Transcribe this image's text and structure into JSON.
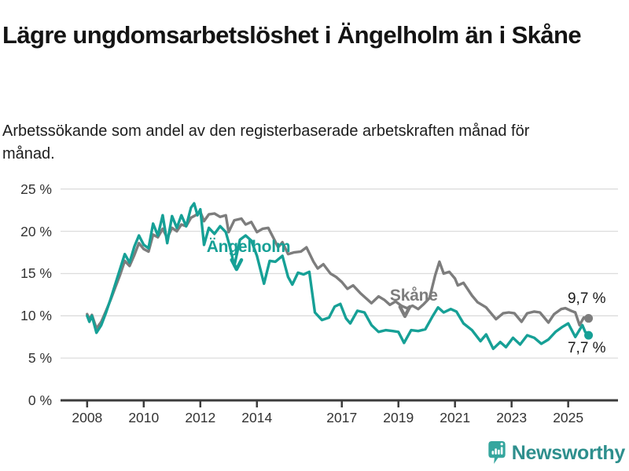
{
  "title": "Lägre ungdomsarbetslöshet i Ängelholm än i Skåne",
  "subtitle": "Arbetssökande som andel av den registerbaserade arbetskraften månad för månad.",
  "footer": {
    "brand": "Newsworthy"
  },
  "colors": {
    "angelholm": "#16a096",
    "skane": "#7d7d7d",
    "grid": "#dcdcdc",
    "axis": "#3c3c3c",
    "text": "#1a1a1a",
    "logo_teal": "#35a69e",
    "logo_text": "#2e8f8d"
  },
  "chart_data": {
    "type": "line",
    "unit": "%",
    "grid": true,
    "legend_position": "inline-annotations",
    "xlim": [
      2007.06,
      2026.76
    ],
    "ylim": [
      0,
      25
    ],
    "x_ticks": [
      {
        "v": 2008,
        "label": "2008"
      },
      {
        "v": 2010,
        "label": "2010"
      },
      {
        "v": 2012,
        "label": "2012"
      },
      {
        "v": 2014,
        "label": "2014"
      },
      {
        "v": 2017,
        "label": "2017"
      },
      {
        "v": 2019,
        "label": "2019"
      },
      {
        "v": 2021,
        "label": "2021"
      },
      {
        "v": 2023,
        "label": "2023"
      },
      {
        "v": 2025,
        "label": "2025"
      }
    ],
    "y_ticks": [
      {
        "v": 25,
        "label": "25 %"
      },
      {
        "v": 20,
        "label": "20 %"
      },
      {
        "v": 15,
        "label": "15 %"
      },
      {
        "v": 10,
        "label": "10 %"
      },
      {
        "v": 5,
        "label": "5 %"
      },
      {
        "v": 0,
        "label": "0 %"
      }
    ],
    "series": [
      {
        "name": "Skåne",
        "color": "#7d7d7d",
        "end_label": "9,7 %",
        "end_value": 9.7,
        "points": [
          [
            2008.0,
            10.2
          ],
          [
            2008.08,
            9.6
          ],
          [
            2008.17,
            10.1
          ],
          [
            2008.33,
            8.5
          ],
          [
            2008.5,
            9.3
          ],
          [
            2008.67,
            10.6
          ],
          [
            2008.83,
            11.9
          ],
          [
            2009.0,
            13.4
          ],
          [
            2009.17,
            14.9
          ],
          [
            2009.33,
            16.5
          ],
          [
            2009.5,
            15.9
          ],
          [
            2009.67,
            17.2
          ],
          [
            2009.83,
            18.6
          ],
          [
            2010.0,
            17.9
          ],
          [
            2010.17,
            17.6
          ],
          [
            2010.33,
            19.6
          ],
          [
            2010.5,
            19.3
          ],
          [
            2010.67,
            20.3
          ],
          [
            2010.83,
            19.2
          ],
          [
            2011.0,
            20.4
          ],
          [
            2011.17,
            20.0
          ],
          [
            2011.33,
            20.8
          ],
          [
            2011.5,
            20.6
          ],
          [
            2011.67,
            21.6
          ],
          [
            2011.83,
            21.9
          ],
          [
            2012.0,
            22.3
          ],
          [
            2012.13,
            21.2
          ],
          [
            2012.3,
            22.0
          ],
          [
            2012.5,
            22.1
          ],
          [
            2012.7,
            21.7
          ],
          [
            2012.9,
            21.9
          ],
          [
            2013.0,
            19.9
          ],
          [
            2013.2,
            21.3
          ],
          [
            2013.45,
            21.5
          ],
          [
            2013.6,
            20.8
          ],
          [
            2013.8,
            21.1
          ],
          [
            2014.0,
            19.9
          ],
          [
            2014.2,
            20.3
          ],
          [
            2014.4,
            20.4
          ],
          [
            2014.6,
            19.1
          ],
          [
            2014.75,
            18.1
          ],
          [
            2014.9,
            18.7
          ],
          [
            2015.1,
            17.3
          ],
          [
            2015.3,
            17.5
          ],
          [
            2015.55,
            17.6
          ],
          [
            2015.75,
            18.1
          ],
          [
            2016.0,
            16.4
          ],
          [
            2016.15,
            15.6
          ],
          [
            2016.35,
            16.1
          ],
          [
            2016.6,
            15.0
          ],
          [
            2016.8,
            14.6
          ],
          [
            2017.0,
            14.0
          ],
          [
            2017.2,
            13.2
          ],
          [
            2017.4,
            13.6
          ],
          [
            2017.65,
            12.7
          ],
          [
            2017.85,
            12.1
          ],
          [
            2018.05,
            11.5
          ],
          [
            2018.3,
            12.3
          ],
          [
            2018.5,
            11.9
          ],
          [
            2018.7,
            11.3
          ],
          [
            2018.9,
            11.7
          ],
          [
            2019.1,
            11.2
          ],
          [
            2019.3,
            10.9
          ],
          [
            2019.5,
            11.2
          ],
          [
            2019.7,
            10.8
          ],
          [
            2019.9,
            11.4
          ],
          [
            2020.1,
            12.1
          ],
          [
            2020.3,
            14.8
          ],
          [
            2020.45,
            16.4
          ],
          [
            2020.6,
            15.0
          ],
          [
            2020.8,
            15.2
          ],
          [
            2021.0,
            14.4
          ],
          [
            2021.1,
            13.6
          ],
          [
            2021.3,
            13.9
          ],
          [
            2021.6,
            12.4
          ],
          [
            2021.8,
            11.6
          ],
          [
            2022.1,
            11.0
          ],
          [
            2022.3,
            10.2
          ],
          [
            2022.45,
            9.6
          ],
          [
            2022.7,
            10.3
          ],
          [
            2022.9,
            10.4
          ],
          [
            2023.1,
            10.3
          ],
          [
            2023.35,
            9.3
          ],
          [
            2023.55,
            10.3
          ],
          [
            2023.8,
            10.5
          ],
          [
            2024.0,
            10.4
          ],
          [
            2024.3,
            9.2
          ],
          [
            2024.5,
            10.2
          ],
          [
            2024.75,
            10.8
          ],
          [
            2024.9,
            10.9
          ],
          [
            2025.1,
            10.6
          ],
          [
            2025.25,
            10.4
          ],
          [
            2025.4,
            8.9
          ],
          [
            2025.55,
            9.8
          ],
          [
            2025.72,
            9.7
          ]
        ]
      },
      {
        "name": "Ängelholm",
        "color": "#16a096",
        "end_label": "7,7 %",
        "end_value": 7.7,
        "points": [
          [
            2008.0,
            10.0
          ],
          [
            2008.08,
            9.3
          ],
          [
            2008.17,
            10.0
          ],
          [
            2008.33,
            8.0
          ],
          [
            2008.5,
            8.9
          ],
          [
            2008.67,
            10.4
          ],
          [
            2008.83,
            12.0
          ],
          [
            2009.0,
            13.8
          ],
          [
            2009.17,
            15.6
          ],
          [
            2009.33,
            17.3
          ],
          [
            2009.5,
            16.3
          ],
          [
            2009.67,
            18.2
          ],
          [
            2009.83,
            19.5
          ],
          [
            2010.0,
            18.4
          ],
          [
            2010.17,
            18.0
          ],
          [
            2010.33,
            20.9
          ],
          [
            2010.5,
            19.5
          ],
          [
            2010.67,
            21.9
          ],
          [
            2010.83,
            18.6
          ],
          [
            2011.0,
            21.8
          ],
          [
            2011.17,
            20.4
          ],
          [
            2011.33,
            21.9
          ],
          [
            2011.5,
            20.6
          ],
          [
            2011.67,
            22.8
          ],
          [
            2011.78,
            23.3
          ],
          [
            2011.9,
            21.9
          ],
          [
            2012.0,
            22.6
          ],
          [
            2012.13,
            18.4
          ],
          [
            2012.3,
            20.4
          ],
          [
            2012.5,
            19.7
          ],
          [
            2012.7,
            20.6
          ],
          [
            2012.9,
            19.9
          ],
          [
            2013.05,
            18.1
          ],
          [
            2013.2,
            15.9
          ],
          [
            2013.4,
            19.0
          ],
          [
            2013.6,
            19.5
          ],
          [
            2013.8,
            18.9
          ],
          [
            2014.0,
            17.1
          ],
          [
            2014.25,
            13.8
          ],
          [
            2014.45,
            16.5
          ],
          [
            2014.65,
            16.4
          ],
          [
            2014.9,
            17.1
          ],
          [
            2015.1,
            14.6
          ],
          [
            2015.25,
            13.7
          ],
          [
            2015.45,
            15.1
          ],
          [
            2015.65,
            14.9
          ],
          [
            2015.85,
            15.2
          ],
          [
            2016.05,
            10.4
          ],
          [
            2016.3,
            9.5
          ],
          [
            2016.55,
            9.8
          ],
          [
            2016.75,
            11.1
          ],
          [
            2016.95,
            11.4
          ],
          [
            2017.15,
            9.7
          ],
          [
            2017.3,
            9.1
          ],
          [
            2017.55,
            10.6
          ],
          [
            2017.8,
            10.4
          ],
          [
            2018.05,
            8.9
          ],
          [
            2018.3,
            8.1
          ],
          [
            2018.55,
            8.3
          ],
          [
            2018.8,
            8.2
          ],
          [
            2019.0,
            8.1
          ],
          [
            2019.2,
            6.8
          ],
          [
            2019.45,
            8.3
          ],
          [
            2019.7,
            8.2
          ],
          [
            2019.95,
            8.4
          ],
          [
            2020.2,
            9.9
          ],
          [
            2020.4,
            11.0
          ],
          [
            2020.6,
            10.4
          ],
          [
            2020.85,
            10.8
          ],
          [
            2021.05,
            10.5
          ],
          [
            2021.3,
            9.1
          ],
          [
            2021.6,
            8.3
          ],
          [
            2021.9,
            7.0
          ],
          [
            2022.1,
            7.8
          ],
          [
            2022.35,
            6.1
          ],
          [
            2022.6,
            6.9
          ],
          [
            2022.8,
            6.3
          ],
          [
            2023.05,
            7.4
          ],
          [
            2023.3,
            6.6
          ],
          [
            2023.55,
            7.7
          ],
          [
            2023.8,
            7.4
          ],
          [
            2024.05,
            6.7
          ],
          [
            2024.3,
            7.2
          ],
          [
            2024.55,
            8.1
          ],
          [
            2024.8,
            8.7
          ],
          [
            2025.0,
            9.1
          ],
          [
            2025.25,
            7.5
          ],
          [
            2025.5,
            8.9
          ],
          [
            2025.6,
            8.1
          ],
          [
            2025.72,
            7.7
          ]
        ]
      }
    ],
    "annotations": [
      {
        "text": "Ängelholm",
        "color": "#16a096",
        "x": 2012.22,
        "y": 18.1,
        "arrow_tip": {
          "x": 2013.28,
          "y": 15.5
        }
      },
      {
        "text": "Skåne",
        "color": "#7d7d7d",
        "x": 2018.7,
        "y": 12.35,
        "arrow_tip": {
          "x": 2019.23,
          "y": 9.95
        }
      }
    ]
  }
}
